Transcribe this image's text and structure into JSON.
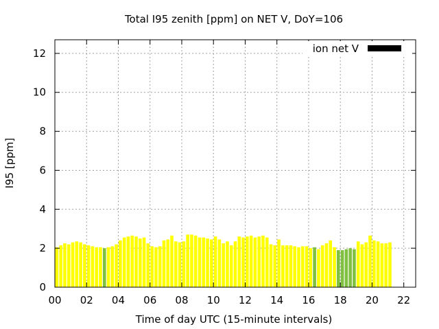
{
  "chart_data": {
    "type": "bar",
    "title": "Total I95 zenith [ppm] on NET V, DoY=106",
    "xlabel": "Time of day UTC (15-minute intervals)",
    "ylabel": "I95 [ppm]",
    "xlim": [
      0,
      22.75
    ],
    "ylim": [
      0,
      12.7
    ],
    "xticks": [
      0,
      2,
      4,
      6,
      8,
      10,
      12,
      14,
      16,
      18,
      20,
      22
    ],
    "xtick_labels": [
      "00",
      "02",
      "04",
      "06",
      "08",
      "10",
      "12",
      "14",
      "16",
      "18",
      "20",
      "22"
    ],
    "yticks": [
      0,
      2,
      4,
      6,
      8,
      10,
      12
    ],
    "ytick_labels": [
      "0",
      "2",
      "4",
      "6",
      "8",
      "10",
      "12"
    ],
    "grid": true,
    "bar_width_hours": 0.2,
    "legend": {
      "label": "ion net V",
      "color": "#000000",
      "placement": "top-right"
    },
    "colors": {
      "yellow": "#ffff00",
      "green": "#80c040"
    },
    "series": [
      {
        "name": "I95",
        "values": [
          2.05,
          2.15,
          2.25,
          2.2,
          2.3,
          2.35,
          2.3,
          2.2,
          2.15,
          2.1,
          2.05,
          2.05,
          2.0,
          2.05,
          2.1,
          2.2,
          2.4,
          2.55,
          2.6,
          2.65,
          2.6,
          2.5,
          2.55,
          2.25,
          2.1,
          2.05,
          2.1,
          2.4,
          2.45,
          2.65,
          2.35,
          2.3,
          2.35,
          2.7,
          2.7,
          2.65,
          2.55,
          2.55,
          2.5,
          2.45,
          2.6,
          2.45,
          2.25,
          2.35,
          2.15,
          2.35,
          2.6,
          2.55,
          2.6,
          2.65,
          2.55,
          2.6,
          2.65,
          2.55,
          2.2,
          2.15,
          2.45,
          2.15,
          2.15,
          2.15,
          2.1,
          2.05,
          2.1,
          2.1,
          2.0,
          2.05,
          1.95,
          2.15,
          2.25,
          2.4,
          2.05,
          1.9,
          1.9,
          1.95,
          2.0,
          1.95,
          2.35,
          2.2,
          2.3,
          2.65,
          2.4,
          2.35,
          2.25,
          2.25,
          2.3
        ],
        "colors": [
          "yellow",
          "yellow",
          "yellow",
          "yellow",
          "yellow",
          "yellow",
          "yellow",
          "yellow",
          "yellow",
          "yellow",
          "yellow",
          "yellow",
          "green",
          "yellow",
          "yellow",
          "yellow",
          "yellow",
          "yellow",
          "yellow",
          "yellow",
          "yellow",
          "yellow",
          "yellow",
          "yellow",
          "yellow",
          "yellow",
          "yellow",
          "yellow",
          "yellow",
          "yellow",
          "yellow",
          "yellow",
          "yellow",
          "yellow",
          "yellow",
          "yellow",
          "yellow",
          "yellow",
          "yellow",
          "yellow",
          "yellow",
          "yellow",
          "yellow",
          "yellow",
          "yellow",
          "yellow",
          "yellow",
          "yellow",
          "yellow",
          "yellow",
          "yellow",
          "yellow",
          "yellow",
          "yellow",
          "yellow",
          "yellow",
          "yellow",
          "yellow",
          "yellow",
          "yellow",
          "yellow",
          "yellow",
          "yellow",
          "yellow",
          "yellow",
          "green",
          "yellow",
          "yellow",
          "yellow",
          "yellow",
          "yellow",
          "green",
          "green",
          "green",
          "green",
          "green",
          "yellow",
          "yellow",
          "yellow",
          "yellow",
          "yellow",
          "yellow",
          "yellow",
          "yellow",
          "yellow"
        ]
      }
    ]
  }
}
